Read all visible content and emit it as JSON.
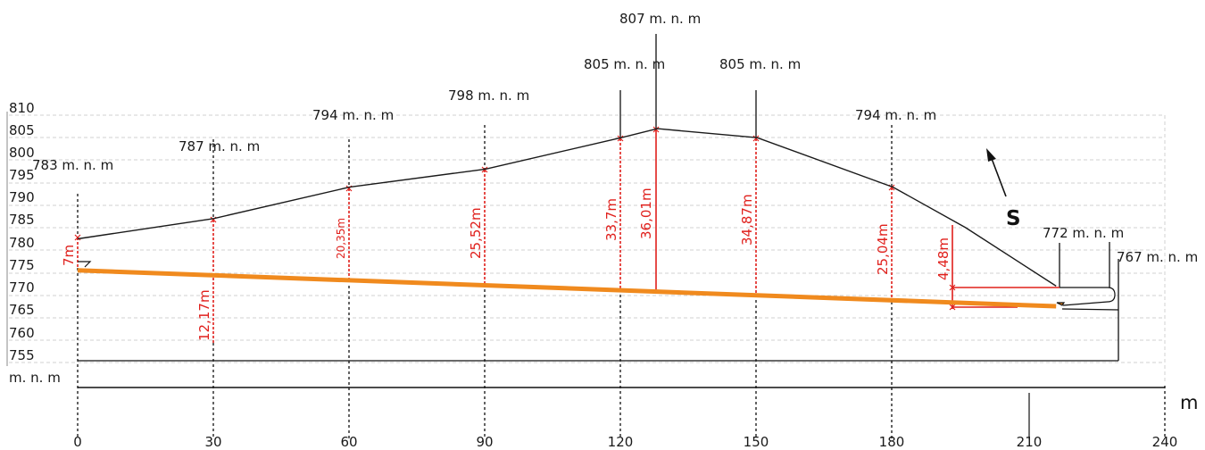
{
  "y_axis": {
    "ticks": [
      "810",
      "805",
      "800",
      "795",
      "790",
      "785",
      "780",
      "775",
      "770",
      "765",
      "760",
      "755"
    ],
    "unit_label": "m. n. m"
  },
  "x_axis": {
    "ticks": [
      "0",
      "30",
      "60",
      "90",
      "120",
      "150",
      "180",
      "210",
      "240"
    ],
    "unit_label": "m"
  },
  "elevation_labels": [
    "783 m. n. m",
    "787 m. n. m",
    "794 m. n. m",
    "798 m. n. m",
    "805 m. n. m",
    "807 m. n. m",
    "805 m. n. m",
    "794 m. n. m",
    "772 m. n. m",
    "767 m. n. m"
  ],
  "depth_labels": [
    "7m",
    "12,17m",
    "20,35m",
    "25,52m",
    "33,7m",
    "36,01m",
    "34,87m",
    "25,04m",
    "4,48m"
  ],
  "north_label": "S",
  "colors": {
    "terrain": "#1a1a1a",
    "tunnel": "#f08a1e",
    "dimension": "#e0201c",
    "grid": "#cfcfcf"
  },
  "chart_data": {
    "type": "line",
    "x_unit": "m",
    "y_unit": "m. n. m",
    "ylim": [
      755,
      810
    ],
    "xlim": [
      0,
      240
    ],
    "series": [
      {
        "name": "",
        "x": [
          0,
          30,
          60,
          90,
          120,
          128,
          150,
          180,
          196,
          216
        ],
        "y": [
          782.5,
          787,
          794,
          798,
          805,
          807,
          805,
          794,
          785,
          772
        ]
      },
      {
        "name": "",
        "x": [
          0,
          216
        ],
        "y": [
          775.5,
          767.5
        ]
      }
    ]
  }
}
